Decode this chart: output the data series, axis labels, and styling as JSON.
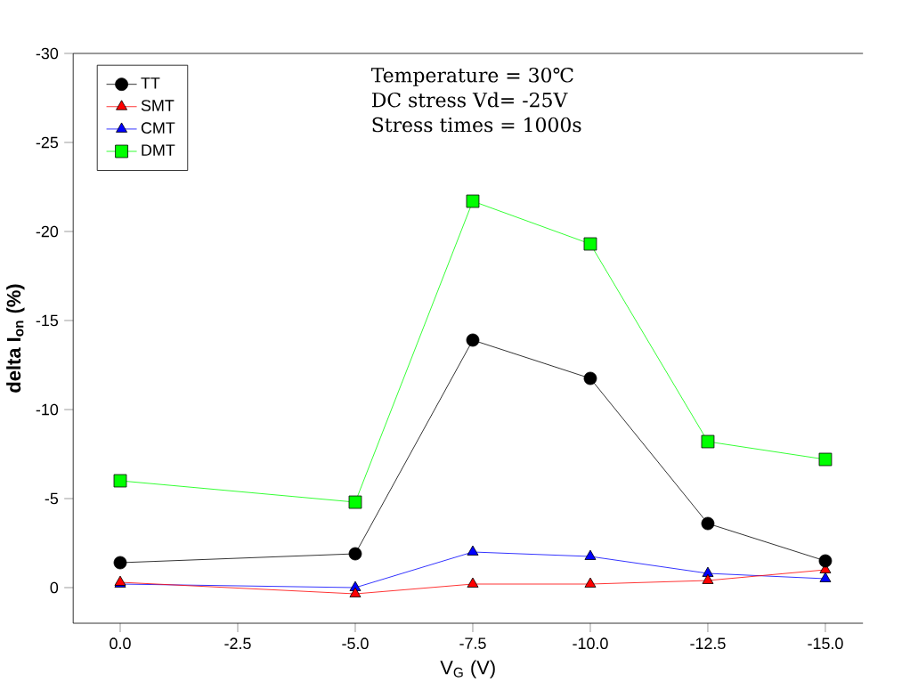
{
  "chart_data": {
    "type": "line",
    "xlabel": "V$_{G}$ (V)",
    "ylabel": "**delta I$_{on}$ (%)**",
    "annotations": [
      "Temperature = 30℃",
      "DC stress Vd= -25V",
      "Stress times = 1000s"
    ],
    "x": [
      0,
      -5,
      -7.5,
      -10,
      -12.5,
      -15
    ],
    "series": [
      {
        "name": "TT",
        "color": "#000000",
        "marker": "circle",
        "values": [
          -1.4,
          -1.9,
          -13.9,
          -11.75,
          -3.6,
          -1.5
        ]
      },
      {
        "name": "SMT",
        "color": "#ff0000",
        "marker": "triangle",
        "values": [
          -0.3,
          0.35,
          -0.2,
          -0.2,
          -0.4,
          -1.0
        ]
      },
      {
        "name": "CMT",
        "color": "#0000ff",
        "marker": "triangle",
        "values": [
          -0.2,
          0.0,
          -2.0,
          -1.75,
          -0.8,
          -0.5
        ]
      },
      {
        "name": "DMT",
        "color": "#00ff00",
        "marker": "square",
        "values": [
          -6.0,
          -4.8,
          -21.7,
          -19.3,
          -8.2,
          -7.2
        ]
      }
    ],
    "xlim": [
      1,
      -15.8
    ],
    "ylim": [
      2,
      -30
    ],
    "xticks": [
      {
        "value": 0,
        "label": "0.0"
      },
      {
        "value": -2.5,
        "label": "-2.5"
      },
      {
        "value": -5,
        "label": "-5.0"
      },
      {
        "value": -7.5,
        "label": "-7.5"
      },
      {
        "value": -10,
        "label": "-10.0"
      },
      {
        "value": -12.5,
        "label": "-12.5"
      },
      {
        "value": -15,
        "label": "-15.0"
      }
    ],
    "yticks": [
      0,
      -5,
      -10,
      -15,
      -20,
      -25,
      -30
    ],
    "legend": "top left",
    "grid": false,
    "line_style": "solid"
  }
}
